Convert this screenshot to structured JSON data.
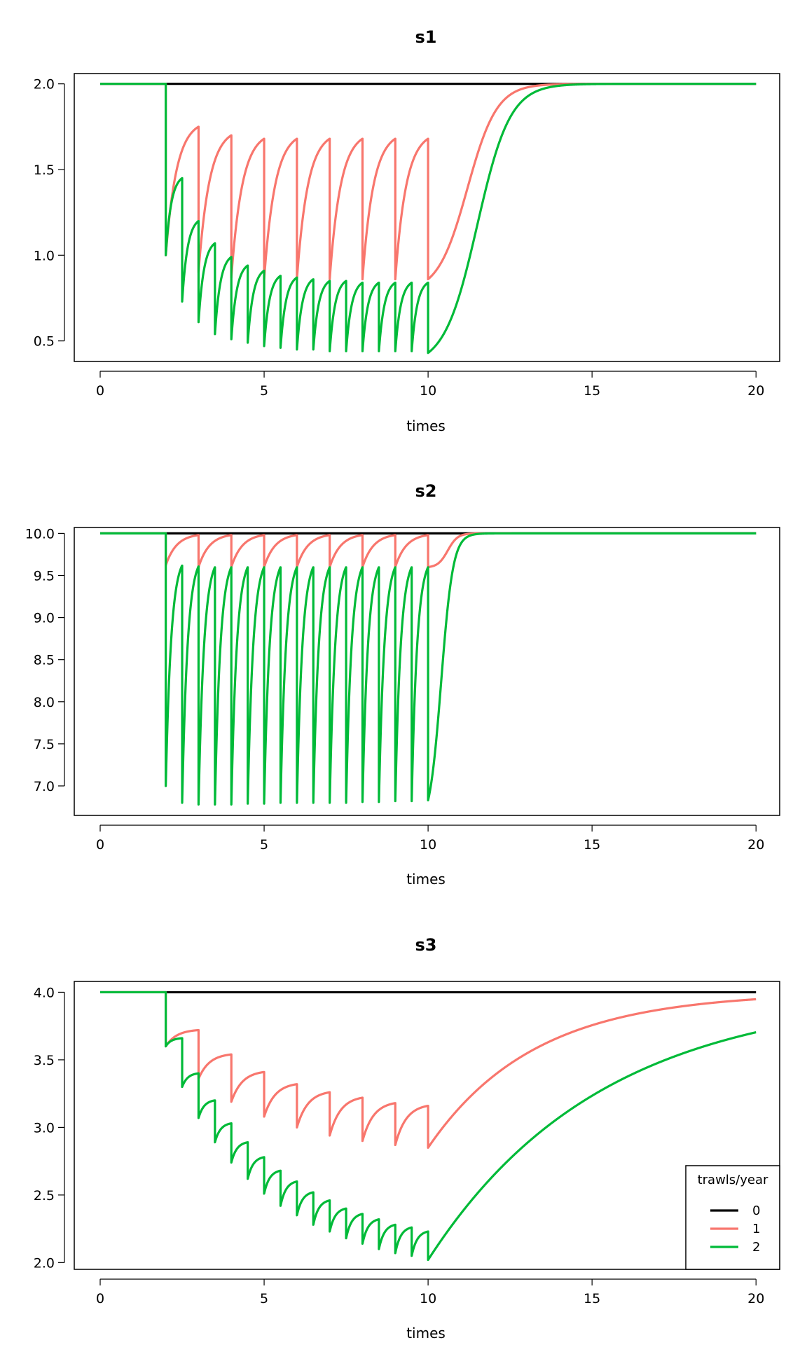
{
  "chart_data": [
    {
      "type": "line",
      "title": "s1",
      "xlabel": "times",
      "ylabel": "",
      "xlim": [
        0,
        20
      ],
      "ylim": [
        0.38,
        2.06
      ],
      "xticks": [
        "0",
        "5",
        "10",
        "15",
        "20"
      ],
      "yticks": [
        "0.5",
        "1.0",
        "1.5",
        "2.0"
      ],
      "grid": false,
      "series": [
        {
          "name": "0",
          "color": "#000000",
          "model": "flat",
          "base": 2.0
        },
        {
          "name": "1",
          "color": "#F8766D",
          "model": "sawtooth",
          "base": 2.0,
          "start": 2,
          "end": 10,
          "period": 1.0,
          "troughs": [
            1.0,
            0.9,
            0.87,
            0.86,
            0.86,
            0.86,
            0.86,
            0.86,
            0.86
          ],
          "peaks": [
            1.75,
            1.7,
            1.68,
            1.68,
            1.68,
            1.68,
            1.68,
            1.68
          ],
          "recovery_mid": 11.2,
          "recovery_width": 0.45
        },
        {
          "name": "2",
          "color": "#00BA38",
          "model": "sawtooth",
          "base": 2.0,
          "start": 2,
          "end": 10,
          "period": 0.5,
          "troughs": [
            1.0,
            0.73,
            0.61,
            0.54,
            0.51,
            0.49,
            0.47,
            0.46,
            0.45,
            0.45,
            0.44,
            0.44,
            0.44,
            0.44,
            0.44,
            0.44,
            0.43
          ],
          "peaks": [
            1.45,
            1.2,
            1.07,
            0.99,
            0.94,
            0.91,
            0.88,
            0.87,
            0.86,
            0.85,
            0.85,
            0.84,
            0.84,
            0.84,
            0.84,
            0.84
          ],
          "recovery_mid": 11.5,
          "recovery_width": 0.5
        }
      ]
    },
    {
      "type": "line",
      "title": "s2",
      "xlabel": "times",
      "ylabel": "",
      "xlim": [
        0,
        20
      ],
      "ylim": [
        6.65,
        10.07
      ],
      "xticks": [
        "0",
        "5",
        "10",
        "15",
        "20"
      ],
      "yticks": [
        "7.0",
        "7.5",
        "8.0",
        "8.5",
        "9.0",
        "9.5",
        "10.0"
      ],
      "grid": false,
      "series": [
        {
          "name": "0",
          "color": "#000000",
          "model": "flat",
          "base": 10.0
        },
        {
          "name": "1",
          "color": "#F8766D",
          "model": "sawtooth",
          "base": 10.0,
          "start": 2,
          "end": 10,
          "period": 1.0,
          "troughs": [
            9.62,
            9.6,
            9.6,
            9.6,
            9.6,
            9.6,
            9.6,
            9.6,
            9.6
          ],
          "peaks": [
            9.98,
            9.98,
            9.98,
            9.98,
            9.98,
            9.98,
            9.98,
            9.98
          ],
          "recovery_mid": 10.6,
          "recovery_width": 0.15
        },
        {
          "name": "2",
          "color": "#00BA38",
          "model": "sawtooth",
          "base": 10.0,
          "start": 2,
          "end": 10,
          "period": 0.5,
          "troughs": [
            7.0,
            6.8,
            6.78,
            6.78,
            6.78,
            6.79,
            6.79,
            6.8,
            6.8,
            6.8,
            6.8,
            6.8,
            6.81,
            6.81,
            6.82,
            6.82,
            6.83
          ],
          "peaks": [
            9.62,
            9.61,
            9.6,
            9.6,
            9.6,
            9.6,
            9.6,
            9.6,
            9.6,
            9.6,
            9.6,
            9.6,
            9.6,
            9.6,
            9.6,
            9.6
          ],
          "recovery_mid": 10.4,
          "recovery_width": 0.18
        }
      ]
    },
    {
      "type": "line",
      "title": "s3",
      "xlabel": "times",
      "ylabel": "",
      "xlim": [
        0,
        20
      ],
      "ylim": [
        1.95,
        4.08
      ],
      "xticks": [
        "0",
        "5",
        "10",
        "15",
        "20"
      ],
      "yticks": [
        "2.0",
        "2.5",
        "3.0",
        "3.5",
        "4.0"
      ],
      "grid": false,
      "legend": {
        "title": "trawls/year",
        "placement": "bottom-right"
      },
      "series": [
        {
          "name": "0",
          "color": "#000000",
          "model": "flat",
          "base": 4.0
        },
        {
          "name": "1",
          "color": "#F8766D",
          "model": "sawtooth",
          "base": 4.0,
          "start": 2,
          "end": 10,
          "period": 1.0,
          "troughs": [
            3.6,
            3.36,
            3.19,
            3.08,
            3.0,
            2.94,
            2.9,
            2.87,
            2.85
          ],
          "peaks": [
            3.72,
            3.54,
            3.41,
            3.32,
            3.26,
            3.22,
            3.18,
            3.16
          ],
          "recovery": "exp",
          "recovery_rate": 0.31
        },
        {
          "name": "2",
          "color": "#00BA38",
          "model": "sawtooth",
          "base": 4.0,
          "start": 2,
          "end": 10,
          "period": 0.5,
          "troughs": [
            3.6,
            3.3,
            3.07,
            2.89,
            2.74,
            2.62,
            2.51,
            2.42,
            2.35,
            2.28,
            2.23,
            2.18,
            2.14,
            2.1,
            2.07,
            2.05,
            2.02
          ],
          "peaks": [
            3.66,
            3.4,
            3.2,
            3.03,
            2.89,
            2.78,
            2.68,
            2.6,
            2.52,
            2.46,
            2.4,
            2.36,
            2.32,
            2.28,
            2.26,
            2.23
          ],
          "recovery": "exp",
          "recovery_rate": 0.19
        }
      ]
    }
  ]
}
